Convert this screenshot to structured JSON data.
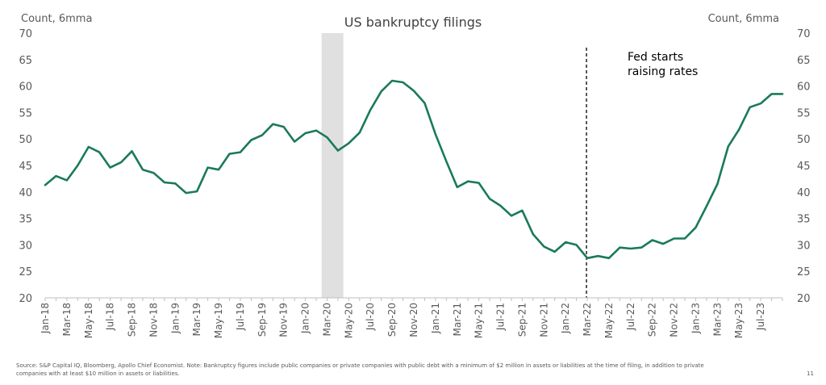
{
  "chart_data": {
    "type": "line",
    "title": "US bankruptcy filings",
    "ylabel_left": "Count, 6mma",
    "ylabel_right": "Count, 6mma",
    "ylim": [
      20,
      70
    ],
    "yticks": [
      20,
      25,
      30,
      35,
      40,
      45,
      50,
      55,
      60,
      65,
      70
    ],
    "x_tick_labels": [
      "Jan-18",
      "Mar-18",
      "May-18",
      "Jul-18",
      "Sep-18",
      "Nov-18",
      "Jan-19",
      "Mar-19",
      "May-19",
      "Jul-19",
      "Sep-19",
      "Nov-19",
      "Jan-20",
      "Mar-20",
      "May-20",
      "Jul-20",
      "Sep-20",
      "Nov-20",
      "Jan-21",
      "Mar-21",
      "May-21",
      "Jul-21",
      "Sep-21",
      "Nov-21",
      "Jan-22",
      "Mar-22",
      "May-22",
      "Jul-22",
      "Sep-22",
      "Nov-22",
      "Jan-23",
      "Mar-23",
      "May-23",
      "Jul-23"
    ],
    "series": [
      {
        "color": "#1a7a5a",
        "values": [
          41.3,
          43.0,
          42.2,
          45.0,
          48.5,
          47.5,
          44.6,
          45.6,
          47.7,
          44.2,
          43.6,
          41.8,
          41.6,
          39.8,
          40.1,
          44.6,
          44.2,
          47.2,
          47.5,
          49.8,
          50.7,
          52.8,
          52.3,
          49.5,
          51.1,
          51.6,
          50.3,
          47.8,
          49.2,
          51.2,
          55.5,
          59.0,
          61.0,
          60.7,
          59.1,
          56.8,
          50.9,
          45.8,
          40.9,
          42.0,
          41.7,
          38.7,
          37.4,
          35.5,
          36.5,
          32.0,
          29.7,
          28.7,
          30.5,
          30.0,
          27.5,
          27.9,
          27.5,
          29.5,
          29.3,
          29.5,
          30.9,
          30.2,
          31.2,
          31.2,
          33.3,
          37.3,
          41.5,
          48.6,
          51.8,
          56.0,
          56.7,
          58.5,
          58.5
        ]
      }
    ],
    "recession_band": {
      "start": "Mar-20",
      "end": "Apr-20",
      "color": "#e0e0e0"
    },
    "vline": {
      "at": "Mar-22",
      "style": "dashed"
    },
    "annotation": {
      "line1": "Fed starts",
      "line2": "raising rates"
    }
  },
  "footer": {
    "source": "Source: S&P Capital IQ, Bloomberg, Apollo Chief Economist. Note: Bankruptcy figures include public companies or private companies with public debt with a minimum of $2 million in assets or liabilities at the time of filing, in addition to private companies with at least $10 million in assets or liabilities.",
    "page": "11"
  }
}
